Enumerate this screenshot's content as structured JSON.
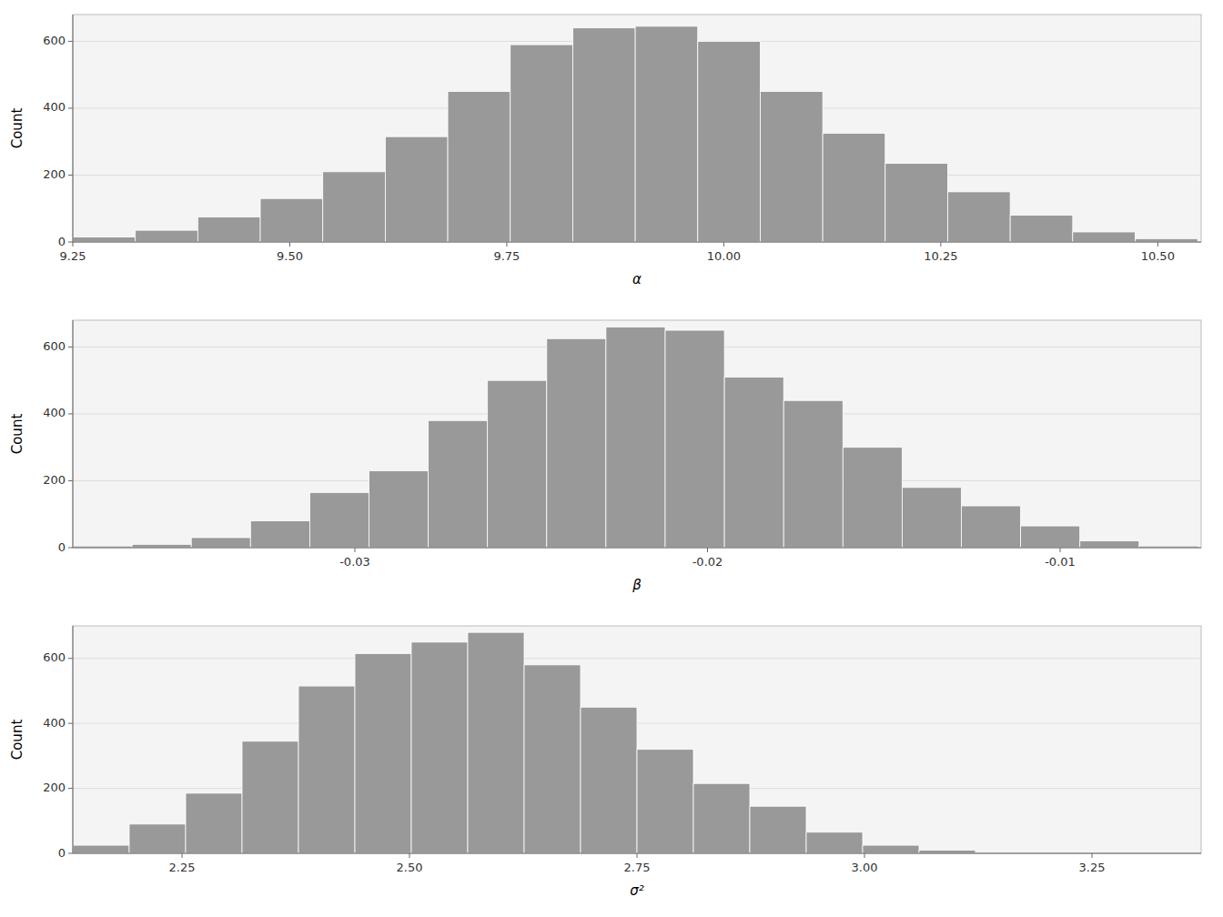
{
  "chart_data": [
    {
      "type": "histogram",
      "xlabel": "α",
      "ylabel": "Count",
      "color": "#999999",
      "grid": true,
      "bins": [
        9.25,
        9.322,
        9.394,
        9.466,
        9.538,
        9.61,
        9.682,
        9.754,
        9.826,
        9.898,
        9.97,
        10.042,
        10.114,
        10.186,
        10.258,
        10.33,
        10.402,
        10.474,
        10.546
      ],
      "values": [
        15,
        35,
        75,
        130,
        210,
        315,
        450,
        590,
        640,
        645,
        600,
        450,
        325,
        235,
        150,
        80,
        30,
        10
      ],
      "xlim": [
        9.25,
        10.55
      ],
      "xticks": [
        9.25,
        {
          "value": 9.5,
          "label": "9.50"
        },
        9.75,
        {
          "value": 10,
          "label": "10.00"
        },
        10.25,
        {
          "value": 10.5,
          "label": "10.50"
        }
      ],
      "ylim": [
        0,
        680
      ],
      "yticks": [
        0,
        200,
        400,
        600
      ]
    },
    {
      "type": "histogram",
      "xlabel": "β",
      "ylabel": "Count",
      "color": "#999999",
      "grid": true,
      "bins": [
        -0.038,
        -0.03632,
        -0.03464,
        -0.03296,
        -0.03128,
        -0.0296,
        -0.02792,
        -0.02624,
        -0.02456,
        -0.02288,
        -0.0212,
        -0.01952,
        -0.01784,
        -0.01616,
        -0.01448,
        -0.0128,
        -0.01112,
        -0.00944,
        -0.00776,
        -0.00608
      ],
      "values": [
        5,
        10,
        30,
        80,
        165,
        230,
        380,
        500,
        625,
        660,
        650,
        510,
        440,
        300,
        180,
        125,
        65,
        20,
        5
      ],
      "xlim": [
        -0.038,
        -0.006
      ],
      "xticks": [
        -0.03,
        -0.02,
        -0.01
      ],
      "ylim": [
        0,
        680
      ],
      "yticks": [
        0,
        200,
        400,
        600
      ]
    },
    {
      "type": "histogram",
      "xlabel": "σ²",
      "ylabel": "Count",
      "color": "#999999",
      "grid": true,
      "bins": [
        2.13,
        2.192,
        2.254,
        2.316,
        2.378,
        2.44,
        2.502,
        2.564,
        2.626,
        2.688,
        2.75,
        2.812,
        2.874,
        2.936,
        2.998,
        3.06,
        3.122
      ],
      "values": [
        25,
        90,
        185,
        345,
        515,
        615,
        650,
        680,
        580,
        450,
        320,
        215,
        145,
        65,
        25,
        10
      ],
      "xlim": [
        2.13,
        3.37
      ],
      "xticks": [
        2.25,
        {
          "value": 2.5,
          "label": "2.50"
        },
        2.75,
        {
          "value": 3,
          "label": "3.00"
        },
        3.25
      ],
      "ylim": [
        0,
        700
      ],
      "yticks": [
        0,
        200,
        400,
        600
      ]
    }
  ]
}
